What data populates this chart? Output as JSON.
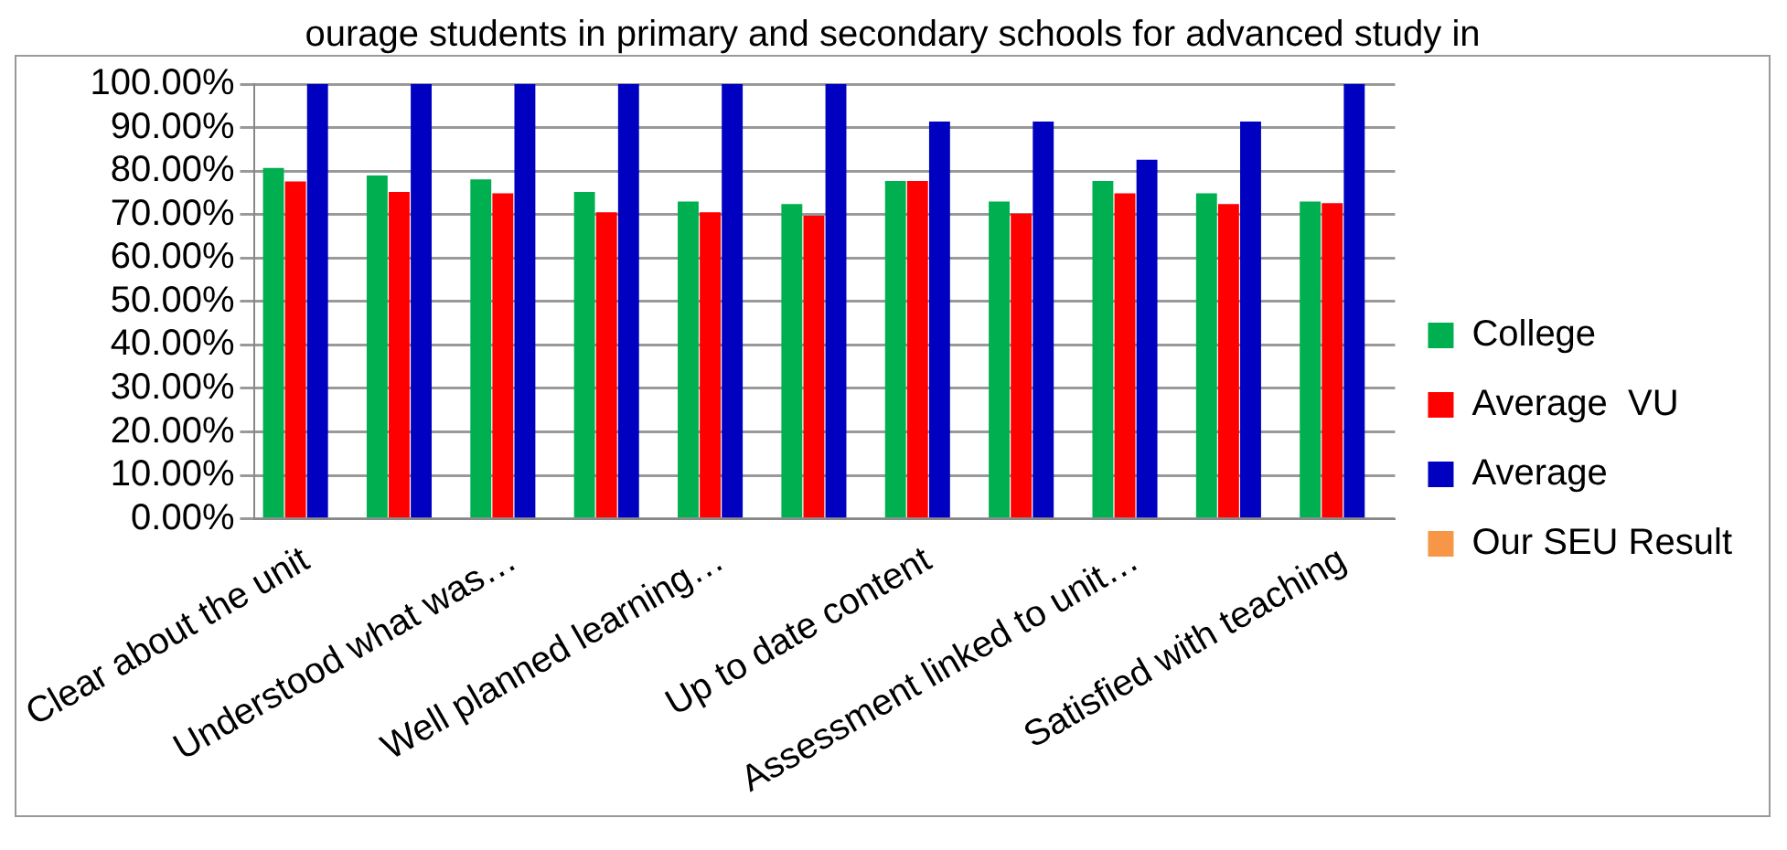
{
  "chart_data": {
    "type": "bar",
    "title": "ourage  students  in primary and secondary schools for advanced study in",
    "categories": [
      "Clear about the unit",
      null,
      "Understood what was…",
      null,
      "Well planned learning…",
      null,
      "Up to date content",
      null,
      "Assessment linked to unit…",
      null,
      "Satisfied with teaching"
    ],
    "series": [
      {
        "name": "College",
        "color": "#00b050",
        "values": [
          80.7,
          79.0,
          78.1,
          75.2,
          73.0,
          72.4,
          77.7,
          73.0,
          77.7,
          74.9,
          73.0
        ]
      },
      {
        "name": "Average  VU",
        "color": "#ff0000",
        "values": [
          77.6,
          75.2,
          74.9,
          70.5,
          70.5,
          69.7,
          77.7,
          70.2,
          74.9,
          72.4,
          72.6
        ]
      },
      {
        "name": "Average",
        "color": "#0000c0",
        "values": [
          100,
          100,
          100,
          100,
          100,
          100,
          91.4,
          91.4,
          82.6,
          91.4,
          100
        ]
      },
      {
        "name": "Our SEU Result",
        "color": "#f79646",
        "values": [
          0,
          0,
          0,
          0,
          0,
          0,
          0,
          0,
          0,
          0,
          0
        ]
      }
    ],
    "ylim": [
      0,
      100
    ],
    "yticks": [
      {
        "value": 0,
        "label": "0.00%"
      },
      {
        "value": 10,
        "label": "10.00%"
      },
      {
        "value": 20,
        "label": "20.00%"
      },
      {
        "value": 30,
        "label": "30.00%"
      },
      {
        "value": 40,
        "label": "40.00%"
      },
      {
        "value": 50,
        "label": "50.00%"
      },
      {
        "value": 60,
        "label": "60.00%"
      },
      {
        "value": 70,
        "label": "70.00%"
      },
      {
        "value": 80,
        "label": "80.00%"
      },
      {
        "value": 90,
        "label": "90.00%"
      },
      {
        "value": 100,
        "label": "100.00%"
      }
    ],
    "grid": "y",
    "legend": "right"
  }
}
